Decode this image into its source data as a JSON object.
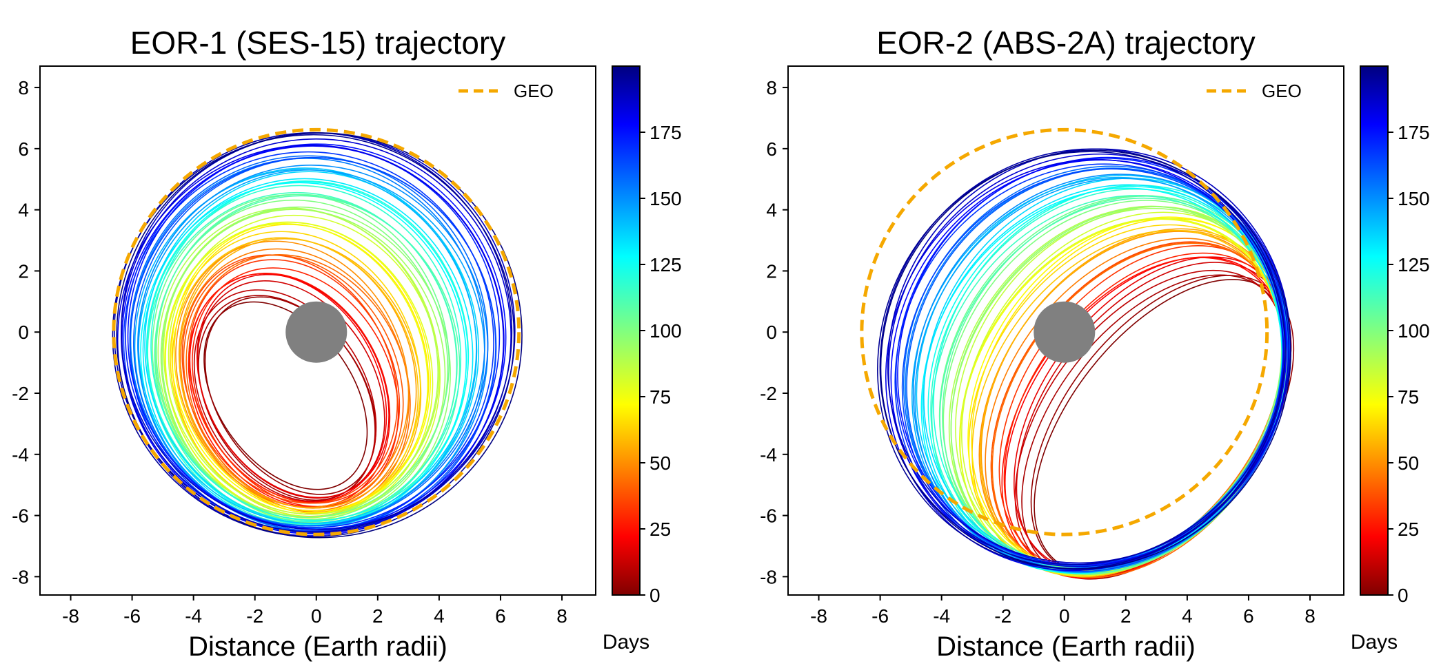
{
  "chart_data": [
    {
      "type": "line",
      "title": "EOR-1 (SES-15) trajectory",
      "xlabel": "Distance (Earth radii)",
      "ylabel": "",
      "xlim": [
        -9.0,
        9.1
      ],
      "ylim": [
        -8.6,
        8.7
      ],
      "xticks": [
        -8,
        -6,
        -4,
        -2,
        0,
        2,
        4,
        6,
        8
      ],
      "yticks": [
        -8,
        -6,
        -4,
        -2,
        0,
        2,
        4,
        6,
        8
      ],
      "xtick_labels": [
        "-8",
        "-6",
        "-4",
        "-2",
        "0",
        "2",
        "4",
        "6",
        "8"
      ],
      "ytick_labels": [
        "-8",
        "-6",
        "-4",
        "-2",
        "0",
        "2",
        "4",
        "6",
        "8"
      ],
      "legend": {
        "entries": [
          "GEO"
        ],
        "placement": "top-right"
      },
      "reference_circle": {
        "name": "GEO",
        "radius": 6.6,
        "center": [
          0,
          0
        ],
        "color": "#f5a800",
        "style": "dashed"
      },
      "earth": {
        "radius": 1.0,
        "center": [
          0,
          0
        ],
        "color": "#808080"
      },
      "colorbar": {
        "label": "Days",
        "range": [
          0,
          200
        ],
        "ticks": [
          0,
          25,
          50,
          75,
          100,
          125,
          150,
          175
        ],
        "tick_labels": [
          "0",
          "25",
          "50",
          "75",
          "100",
          "125",
          "150",
          "175"
        ],
        "colormap": "jet_r"
      },
      "trajectory": {
        "days": [
          0,
          200
        ],
        "start_orbit": {
          "center": [
            -1.0,
            -2.2
          ],
          "semi_axes": [
            2.2,
            3.4
          ],
          "tilt_deg": 35
        },
        "end_orbit": {
          "center": [
            0.0,
            0.0
          ],
          "semi_axes": [
            6.6,
            6.6
          ],
          "tilt_deg": 0
        }
      }
    },
    {
      "type": "line",
      "title": "EOR-2 (ABS-2A) trajectory",
      "xlabel": "Distance (Earth radii)",
      "ylabel": "",
      "xlim": [
        -9.0,
        9.1
      ],
      "ylim": [
        -8.6,
        8.7
      ],
      "xticks": [
        -8,
        -6,
        -4,
        -2,
        0,
        2,
        4,
        6,
        8
      ],
      "yticks": [
        -8,
        -6,
        -4,
        -2,
        0,
        2,
        4,
        6,
        8
      ],
      "xtick_labels": [
        "-8",
        "-6",
        "-4",
        "-2",
        "0",
        "2",
        "4",
        "6",
        "8"
      ],
      "ytick_labels": [
        "-8",
        "-6",
        "-4",
        "-2",
        "0",
        "2",
        "4",
        "6",
        "8"
      ],
      "legend": {
        "entries": [
          "GEO"
        ],
        "placement": "top-right"
      },
      "reference_circle": {
        "name": "GEO",
        "radius": 6.6,
        "center": [
          0,
          0
        ],
        "color": "#f5a800",
        "style": "dashed"
      },
      "earth": {
        "radius": 1.0,
        "center": [
          0,
          0
        ],
        "color": "#808080"
      },
      "colorbar": {
        "label": "Days",
        "range": [
          0,
          200
        ],
        "ticks": [
          0,
          25,
          50,
          75,
          100,
          125,
          150,
          175
        ],
        "tick_labels": [
          "0",
          "25",
          "50",
          "75",
          "100",
          "125",
          "150",
          "175"
        ],
        "colormap": "jet_r"
      },
      "trajectory": {
        "days": [
          0,
          200
        ],
        "start_orbit": {
          "center": [
            3.2,
            -3.2
          ],
          "semi_axes": [
            3.0,
            5.6
          ],
          "tilt_deg": -38
        },
        "end_orbit": {
          "center": [
            0.6,
            -0.8
          ],
          "semi_axes": [
            6.6,
            6.9
          ],
          "tilt_deg": -30
        }
      }
    }
  ]
}
